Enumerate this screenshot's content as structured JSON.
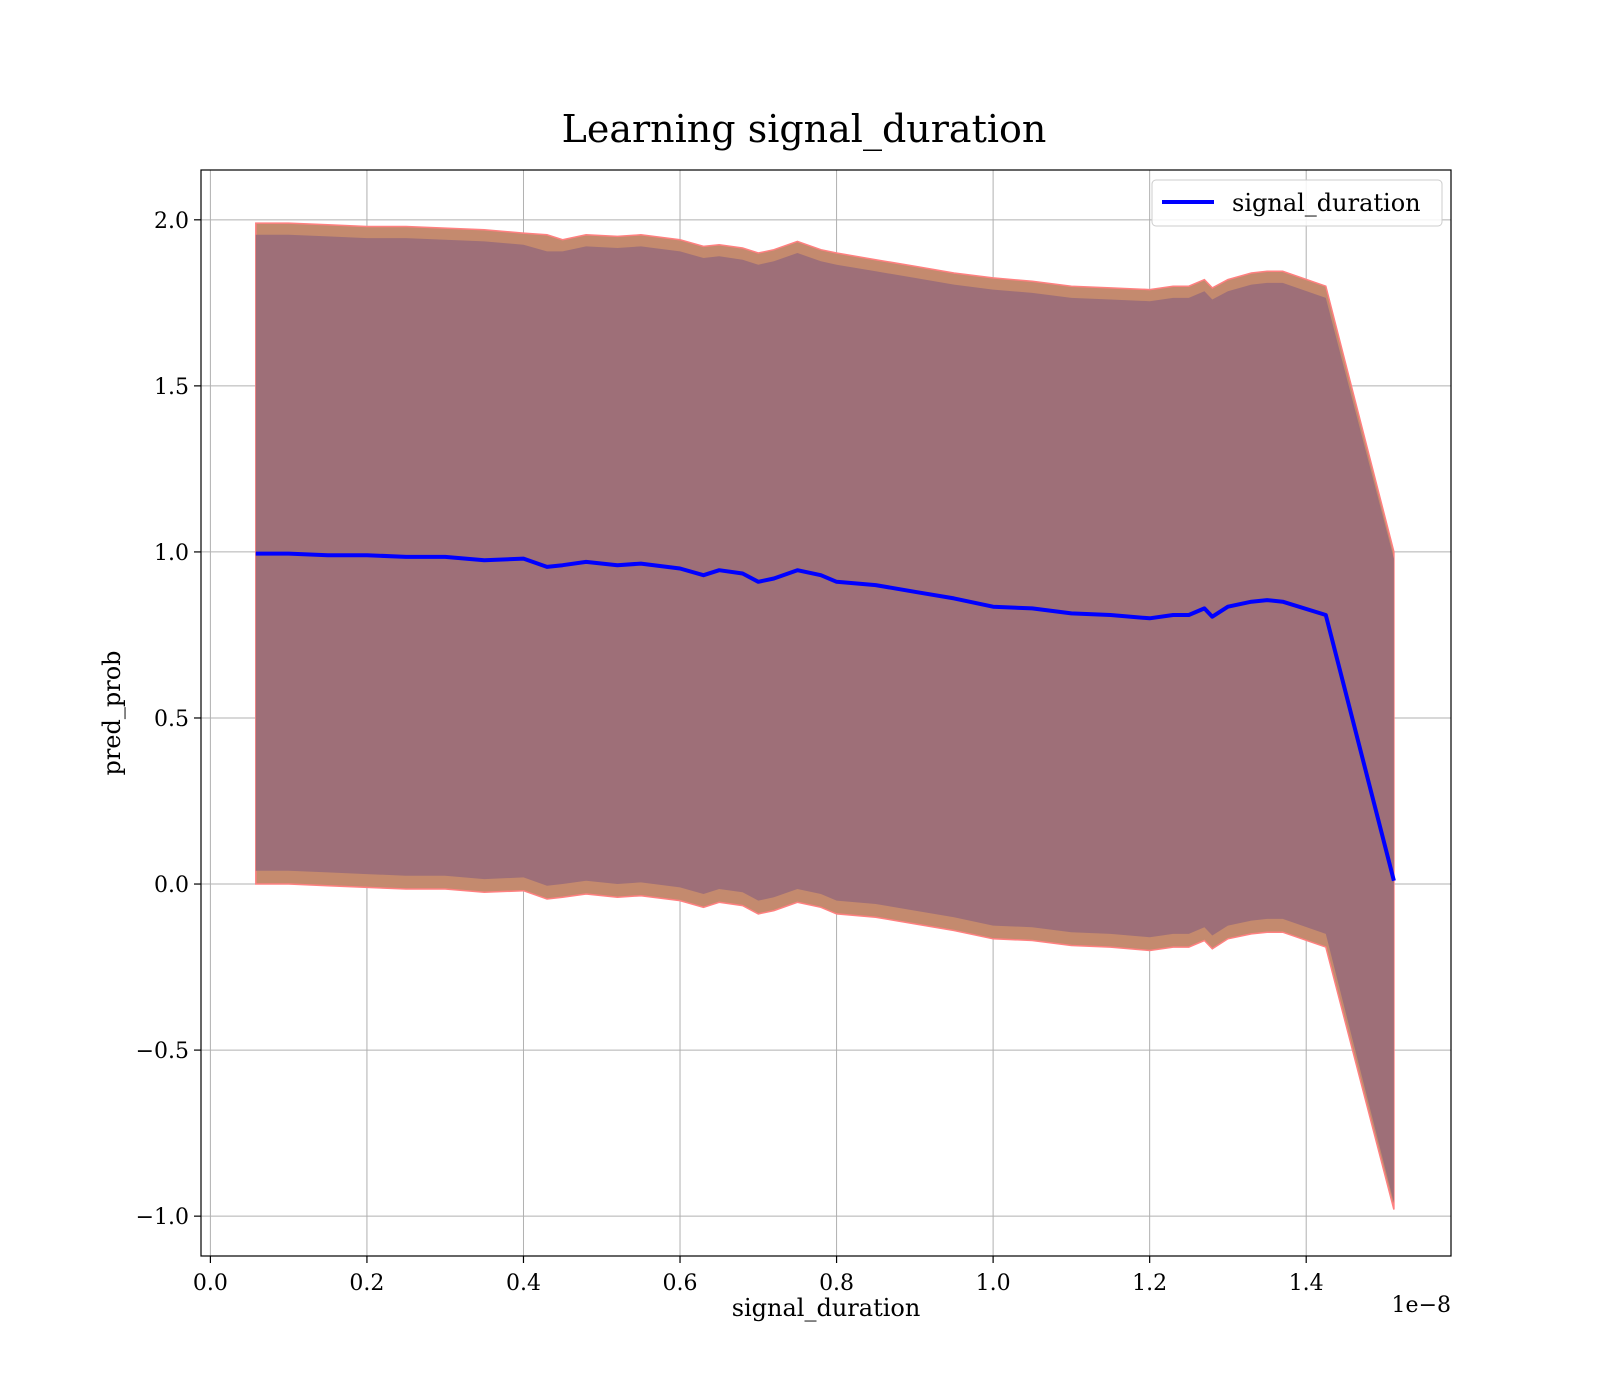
{
  "chart_data": {
    "type": "area",
    "title": "Learning signal_duration",
    "xlabel": "signal_duration",
    "ylabel": "pred_prob",
    "x_offset_label": "1e−8",
    "xlim": [
      -0.012,
      1.585
    ],
    "ylim": [
      -1.12,
      2.15
    ],
    "x_ticks": [
      0.0,
      0.2,
      0.4,
      0.6,
      0.8,
      1.0,
      1.2,
      1.4
    ],
    "x_tick_labels": [
      "0.0",
      "0.2",
      "0.4",
      "0.6",
      "0.8",
      "1.0",
      "1.2",
      "1.4"
    ],
    "y_ticks": [
      -1.0,
      -0.5,
      0.0,
      0.5,
      1.0,
      1.5,
      2.0
    ],
    "y_tick_labels": [
      "−1.0",
      "−0.5",
      "0.0",
      "0.5",
      "1.0",
      "1.5",
      "2.0"
    ],
    "grid": true,
    "legend_position": "upper right",
    "colors": {
      "line": "#0000ff",
      "outer_band": "#c48a6e",
      "outer_band_edge": "#ff8080",
      "inner_band": "#9e6f78"
    },
    "x": [
      0.058,
      0.1,
      0.15,
      0.2,
      0.25,
      0.3,
      0.35,
      0.4,
      0.43,
      0.45,
      0.48,
      0.52,
      0.55,
      0.6,
      0.63,
      0.65,
      0.68,
      0.7,
      0.72,
      0.75,
      0.78,
      0.8,
      0.85,
      0.9,
      0.95,
      1.0,
      1.05,
      1.1,
      1.15,
      1.2,
      1.23,
      1.25,
      1.27,
      1.28,
      1.3,
      1.33,
      1.35,
      1.37,
      1.425,
      1.512
    ],
    "series": [
      {
        "name": "signal_duration",
        "values": [
          0.995,
          0.995,
          0.99,
          0.99,
          0.985,
          0.985,
          0.975,
          0.98,
          0.955,
          0.96,
          0.97,
          0.96,
          0.965,
          0.95,
          0.93,
          0.945,
          0.935,
          0.91,
          0.92,
          0.945,
          0.93,
          0.91,
          0.9,
          0.88,
          0.86,
          0.835,
          0.83,
          0.815,
          0.81,
          0.8,
          0.81,
          0.81,
          0.83,
          0.805,
          0.835,
          0.85,
          0.855,
          0.85,
          0.81,
          0.01
        ]
      }
    ],
    "outer_band": {
      "upper": [
        1.99,
        1.99,
        1.985,
        1.98,
        1.98,
        1.975,
        1.97,
        1.96,
        1.955,
        1.94,
        1.955,
        1.95,
        1.955,
        1.94,
        1.92,
        1.925,
        1.915,
        1.9,
        1.91,
        1.935,
        1.91,
        1.9,
        1.88,
        1.86,
        1.84,
        1.825,
        1.815,
        1.8,
        1.795,
        1.79,
        1.8,
        1.8,
        1.82,
        1.795,
        1.82,
        1.84,
        1.845,
        1.845,
        1.8,
        1.0
      ],
      "lower": [
        0.0,
        0.0,
        -0.005,
        -0.01,
        -0.015,
        -0.015,
        -0.025,
        -0.02,
        -0.045,
        -0.04,
        -0.03,
        -0.04,
        -0.035,
        -0.05,
        -0.07,
        -0.055,
        -0.065,
        -0.09,
        -0.08,
        -0.055,
        -0.07,
        -0.09,
        -0.1,
        -0.12,
        -0.14,
        -0.165,
        -0.17,
        -0.185,
        -0.19,
        -0.2,
        -0.19,
        -0.19,
        -0.17,
        -0.195,
        -0.165,
        -0.15,
        -0.145,
        -0.145,
        -0.19,
        -0.98
      ]
    },
    "inner_band": {
      "upper": [
        1.955,
        1.955,
        1.95,
        1.945,
        1.945,
        1.94,
        1.935,
        1.925,
        1.905,
        1.905,
        1.92,
        1.915,
        1.92,
        1.905,
        1.885,
        1.89,
        1.88,
        1.865,
        1.875,
        1.9,
        1.875,
        1.865,
        1.845,
        1.825,
        1.805,
        1.79,
        1.78,
        1.765,
        1.76,
        1.755,
        1.765,
        1.765,
        1.785,
        1.76,
        1.785,
        1.805,
        1.81,
        1.81,
        1.765,
        0.98
      ],
      "lower": [
        0.04,
        0.04,
        0.035,
        0.03,
        0.025,
        0.025,
        0.015,
        0.02,
        -0.005,
        0.0,
        0.01,
        0.0,
        0.005,
        -0.01,
        -0.03,
        -0.015,
        -0.025,
        -0.05,
        -0.04,
        -0.015,
        -0.03,
        -0.05,
        -0.06,
        -0.08,
        -0.1,
        -0.125,
        -0.13,
        -0.145,
        -0.15,
        -0.16,
        -0.15,
        -0.15,
        -0.13,
        -0.155,
        -0.125,
        -0.11,
        -0.105,
        -0.105,
        -0.15,
        -0.96
      ]
    }
  }
}
